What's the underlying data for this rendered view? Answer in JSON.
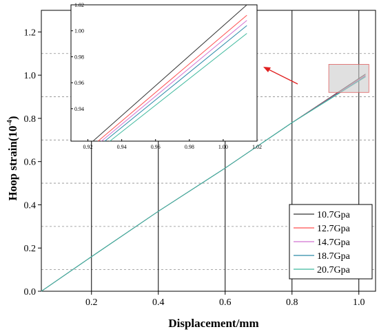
{
  "chart_data": {
    "type": "line",
    "xlabel": "Displacement/mm",
    "ylabel_main": "Hoop strain(10",
    "ylabel_exp": "-4",
    "ylabel_close": ")",
    "xlim": [
      0.05,
      1.05
    ],
    "ylim": [
      0.0,
      1.3
    ],
    "xticks": [
      "0.2",
      "0.4",
      "0.6",
      "0.8",
      "1.0"
    ],
    "yticks": [
      "0.0",
      "0.2",
      "0.4",
      "0.6",
      "0.8",
      "1.0",
      "1.2"
    ],
    "grid": "vertical solid major lines, horizontal dashed minor lines",
    "legend_position": "bottom-right",
    "series": [
      {
        "name": "10.7Gpa",
        "color": "#333333",
        "x": [
          0.05,
          0.2,
          0.4,
          0.6,
          0.8,
          1.02
        ],
        "y": [
          0.0,
          0.16,
          0.37,
          0.57,
          0.78,
          1.005
        ]
      },
      {
        "name": "12.7Gpa",
        "color": "#ff4d4d",
        "x": [
          0.05,
          0.2,
          0.4,
          0.6,
          0.8,
          1.02
        ],
        "y": [
          0.0,
          0.16,
          0.37,
          0.57,
          0.78,
          1.0
        ]
      },
      {
        "name": "14.7Gpa",
        "color": "#d070d0",
        "x": [
          0.05,
          0.2,
          0.4,
          0.6,
          0.8,
          1.02
        ],
        "y": [
          0.0,
          0.16,
          0.37,
          0.57,
          0.78,
          0.998
        ]
      },
      {
        "name": "18.7Gpa",
        "color": "#2a8aa8",
        "x": [
          0.05,
          0.2,
          0.4,
          0.6,
          0.8,
          1.02
        ],
        "y": [
          0.0,
          0.16,
          0.37,
          0.57,
          0.78,
          0.995
        ]
      },
      {
        "name": "20.7Gpa",
        "color": "#3cb89c",
        "x": [
          0.05,
          0.2,
          0.4,
          0.6,
          0.8,
          1.02
        ],
        "y": [
          0.0,
          0.16,
          0.37,
          0.57,
          0.78,
          0.992
        ]
      }
    ],
    "highlight_box_color": "#cccccc",
    "arrow_color": "#e02020",
    "inset": {
      "xlim": [
        0.91,
        1.02
      ],
      "ylim": [
        0.915,
        1.02
      ],
      "xticks": [
        "0.92",
        "0.94",
        "0.96",
        "0.98",
        "1.00",
        "1.02"
      ],
      "yticks": [
        "0.94",
        "0.96",
        "0.98",
        "1.00",
        "1.02"
      ],
      "lines": [
        {
          "name": "10.7Gpa",
          "color": "#333333",
          "x": [
            0.923,
            1.014
          ],
          "y": [
            0.915,
            1.02
          ]
        },
        {
          "name": "12.7Gpa",
          "color": "#ff4d4d",
          "x": [
            0.926,
            1.014
          ],
          "y": [
            0.915,
            1.012
          ]
        },
        {
          "name": "14.7Gpa",
          "color": "#d070d0",
          "x": [
            0.928,
            1.014
          ],
          "y": [
            0.915,
            1.008
          ]
        },
        {
          "name": "18.7Gpa",
          "color": "#2a8aa8",
          "x": [
            0.93,
            1.014
          ],
          "y": [
            0.915,
            1.004
          ]
        },
        {
          "name": "20.7Gpa",
          "color": "#3cb89c",
          "x": [
            0.933,
            1.014
          ],
          "y": [
            0.915,
            0.998
          ]
        }
      ]
    }
  }
}
